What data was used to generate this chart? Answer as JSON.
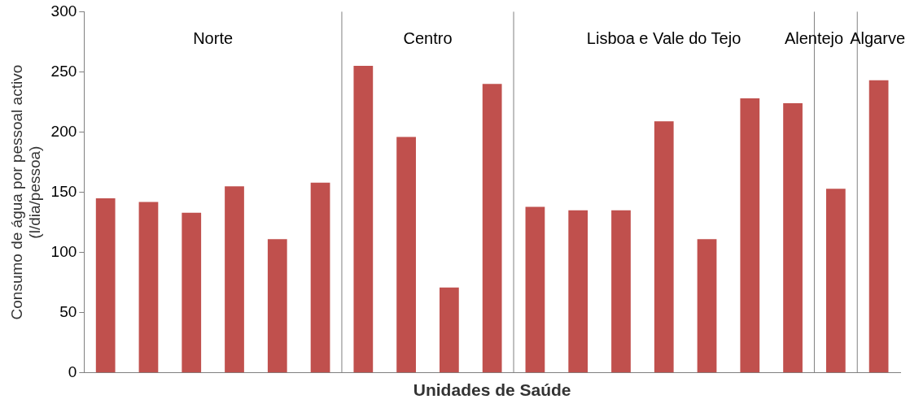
{
  "chart_data": {
    "type": "bar",
    "xlabel": "Unidades de Saúde",
    "ylabel": "Consumo de água por pessoal activo\n(l/dia/pessoa)",
    "categories": [
      null,
      null,
      null,
      null,
      null,
      null,
      null,
      null,
      null,
      null,
      null,
      null,
      null,
      null,
      null,
      null,
      null,
      null,
      null
    ],
    "values": [
      145,
      142,
      133,
      155,
      111,
      158,
      255,
      196,
      71,
      240,
      138,
      135,
      135,
      209,
      111,
      228,
      224,
      153,
      243
    ],
    "color": "#c0504d",
    "ylim": [
      0,
      300
    ],
    "yticks": [
      0,
      50,
      100,
      150,
      200,
      250,
      300
    ],
    "grid": false,
    "legend": false,
    "tick_labels": "y",
    "annotations": [
      "Norte",
      "Centro",
      "Lisboa e Vale do Tejo",
      "Alentejo",
      "Algarve"
    ]
  }
}
